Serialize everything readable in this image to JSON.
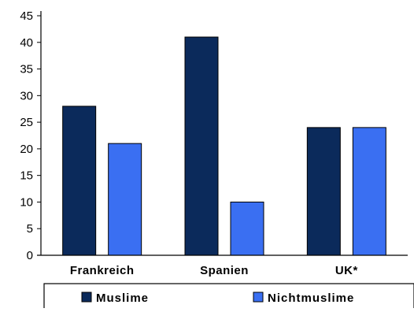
{
  "chart_data": {
    "type": "bar",
    "title": "",
    "xlabel": "",
    "ylabel": "",
    "categories": [
      "Frankreich",
      "Spanien",
      "UK*"
    ],
    "series": [
      {
        "name": "Muslime",
        "values": [
          28,
          41,
          24
        ],
        "color": "#0b2a5b"
      },
      {
        "name": "Nichtmuslime",
        "values": [
          21,
          10,
          24
        ],
        "color": "#3a6ff2"
      }
    ],
    "ylim": [
      0,
      45
    ],
    "yticks": [
      0,
      5,
      10,
      15,
      20,
      25,
      30,
      35,
      40,
      45
    ],
    "grid": false,
    "legend_placement": "bottom"
  }
}
